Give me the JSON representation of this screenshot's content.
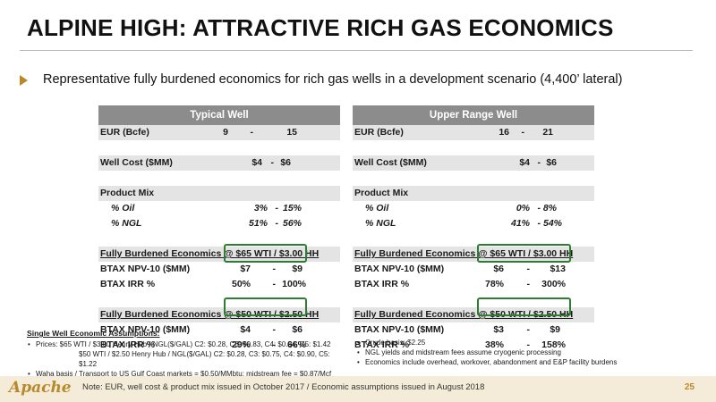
{
  "title": "ALPINE HIGH: ATTRACTIVE RICH GAS ECONOMICS",
  "bullet": "Representative fully burdened economics for rich gas wells in a development scenario (4,400’ lateral)",
  "tables": {
    "typical": {
      "header": "Typical Well",
      "eur_label": "EUR (Bcfe)",
      "eur_low": "9",
      "eur_high": "15",
      "cost_label": "Well Cost ($MM)",
      "cost_low": "$4",
      "cost_high": "$6",
      "mix_label": "Product Mix",
      "oil_label": "% Oil",
      "oil_low": "3%",
      "oil_high": "15%",
      "ngl_label": "% NGL",
      "ngl_low": "51%",
      "ngl_high": "56%",
      "s1_label": "Fully Burdened Economics @ $65 WTI / $3.00 HH",
      "s1_npv_label": "BTAX NPV-10 ($MM)",
      "s1_npv_low": "$7",
      "s1_npv_high": "$9",
      "s1_irr_label": "BTAX IRR %",
      "s1_irr_low": "50%",
      "s1_irr_high": "100%",
      "s2_label": "Fully Burdened Economics @ $50 WTI / $2.50 HH",
      "s2_npv_label": "BTAX NPV-10 ($MM)",
      "s2_npv_low": "$4",
      "s2_npv_high": "$6",
      "s2_irr_label": "BTAX IRR %",
      "s2_irr_low": "29%",
      "s2_irr_high": "66%"
    },
    "upper": {
      "header": "Upper Range Well",
      "eur_label": "EUR (Bcfe)",
      "eur_low": "16",
      "eur_high": "21",
      "cost_label": "Well Cost ($MM)",
      "cost_low": "$4",
      "cost_high": "$6",
      "mix_label": "Product Mix",
      "oil_label": "% Oil",
      "oil_low": "0%",
      "oil_high": "8%",
      "ngl_label": "% NGL",
      "ngl_low": "41%",
      "ngl_high": "54%",
      "s1_label": "Fully Burdened Economics @ $65 WTI / $3.00 HH",
      "s1_npv_label": "BTAX NPV-10 ($MM)",
      "s1_npv_low": "$6",
      "s1_npv_high": "$13",
      "s1_irr_label": "BTAX IRR %",
      "s1_irr_low": "78%",
      "s1_irr_high": "300%",
      "s2_label": "Fully Burdened Economics @ $50 WTI / $2.50 HH",
      "s2_npv_label": "BTAX NPV-10 ($MM)",
      "s2_npv_low": "$3",
      "s2_npv_high": "$9",
      "s2_irr_label": "BTAX IRR %",
      "s2_irr_low": "38%",
      "s2_irr_high": "158%"
    },
    "dash": "-"
  },
  "assumptions": {
    "heading": "Single Well Economic Assumptions:",
    "bullet_char": "•",
    "item1": "Prices: $65 WTI / $3.00 Henry Hub / NGL($/GAL) C2: $0.28, C3: $0.83, C4: $0.94, C5: $1.42",
    "item1_cont": "$50 WTI / $2.50 Henry Hub / NGL($/GAL) C2: $0.28, C3: $0.75, C4: $0.90, C5: $1.22",
    "item2": "Waha basis / Transport to US Gulf Coast markets = $0.50/MMbtu; midstream fee = $0.87/Mcf",
    "right1": "Crude basis: $2.25",
    "right2": "NGL yields and midstream fees assume cryogenic processing",
    "right3": "Economics include overhead, workover, abandonment and E&P facility burdens"
  },
  "footer": {
    "logo": "Apache",
    "note": "Note: EUR, well cost & product mix issued in October 2017 / Economic assumptions issued in August 2018",
    "page": "25"
  },
  "colors": {
    "accent": "#b8892b",
    "table_header": "#8c8c8c",
    "row_shade": "#e4e4e4",
    "highlight": "#2e7d32",
    "footer_bg": "#f4ecd8"
  }
}
